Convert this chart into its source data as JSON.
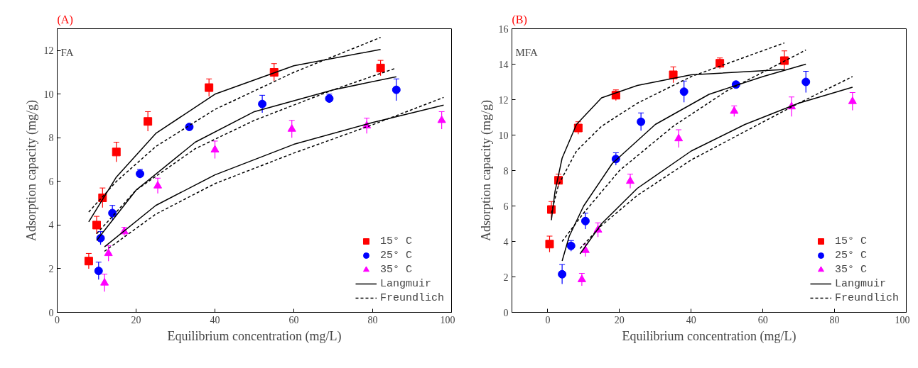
{
  "chart_data": [
    {
      "type": "scatter",
      "title": "(A)",
      "annotations": [
        "FA"
      ],
      "xlabel": "Equilibrium concentration (mg/L)",
      "ylabel": "Adsorption capacity (mg/g)",
      "xlim": [
        0,
        100
      ],
      "xticks": [
        0,
        20,
        40,
        60,
        80,
        100
      ],
      "ylim": [
        0,
        13
      ],
      "yticks": [
        0,
        2,
        4,
        6,
        8,
        10,
        12
      ],
      "grid": false,
      "legend": "bottom right",
      "series": [
        {
          "name": "15° C",
          "color": "#ff0000",
          "marker": "square",
          "x": [
            8,
            10,
            11.5,
            15,
            23,
            38.5,
            55,
            82
          ],
          "values": [
            2.35,
            4.0,
            5.25,
            7.35,
            8.75,
            10.3,
            11.0,
            11.2
          ],
          "errors": [
            0.35,
            0.4,
            0.45,
            0.45,
            0.45,
            0.4,
            0.4,
            0.35
          ]
        },
        {
          "name": "25° C",
          "color": "#0000ff",
          "marker": "circle",
          "x": [
            10.5,
            11,
            14,
            21,
            33.5,
            52,
            69,
            86
          ],
          "values": [
            1.9,
            3.4,
            4.55,
            6.35,
            8.5,
            9.55,
            9.8,
            10.2
          ],
          "errors": [
            0.4,
            0.3,
            0.35,
            0.2,
            0.1,
            0.4,
            0.2,
            0.5
          ]
        },
        {
          "name": "35° C",
          "color": "#ff00ff",
          "marker": "triangle",
          "x": [
            12,
            13,
            17,
            25.5,
            40,
            59.5,
            78.5,
            97.5
          ],
          "values": [
            1.35,
            2.7,
            3.7,
            5.8,
            7.45,
            8.4,
            8.55,
            8.8
          ],
          "errors": [
            0.4,
            0.35,
            0.2,
            0.35,
            0.4,
            0.4,
            0.35,
            0.4
          ]
        },
        {
          "name": "Langmuir",
          "type": "line",
          "color": "#000000",
          "line_style": "solid",
          "x": [
            8,
            15,
            25,
            40,
            60,
            82
          ],
          "values": [
            4.15,
            6.2,
            8.2,
            10.0,
            11.3,
            12.05
          ]
        },
        {
          "name": "Freundlich",
          "type": "line",
          "color": "#000000",
          "line_style": "dashed",
          "x": [
            8,
            15,
            25,
            40,
            60,
            82
          ],
          "values": [
            4.6,
            6.0,
            7.6,
            9.3,
            11.0,
            12.6
          ]
        },
        {
          "type": "line",
          "color": "#000000",
          "line_style": "solid",
          "x": [
            10,
            20,
            35,
            50,
            70,
            86
          ],
          "values": [
            3.3,
            5.6,
            7.8,
            9.2,
            10.2,
            10.8
          ]
        },
        {
          "type": "line",
          "color": "#000000",
          "line_style": "dashed",
          "x": [
            10,
            20,
            35,
            50,
            70,
            86
          ],
          "values": [
            3.6,
            5.6,
            7.5,
            8.8,
            10.2,
            11.2
          ]
        },
        {
          "type": "line",
          "color": "#000000",
          "line_style": "solid",
          "x": [
            12,
            25,
            40,
            60,
            80,
            98
          ],
          "values": [
            3.0,
            4.9,
            6.3,
            7.7,
            8.7,
            9.5
          ]
        },
        {
          "type": "line",
          "color": "#000000",
          "line_style": "dashed",
          "x": [
            12,
            25,
            40,
            60,
            80,
            98
          ],
          "values": [
            2.8,
            4.5,
            5.9,
            7.3,
            8.6,
            9.85
          ]
        }
      ]
    },
    {
      "type": "scatter",
      "title": "(B)",
      "annotations": [
        "MFA"
      ],
      "xlabel": "Equilibrium concentration (mg/L)",
      "ylabel": "Adsorption capacity (mg/g)",
      "xlim": [
        -10,
        100
      ],
      "xticks": [
        0,
        20,
        40,
        60,
        80,
        100
      ],
      "ylim": [
        0,
        16
      ],
      "yticks": [
        0,
        2,
        4,
        6,
        8,
        10,
        12,
        14,
        16
      ],
      "grid": false,
      "legend": "bottom right",
      "series": [
        {
          "name": "15° C",
          "color": "#ff0000",
          "marker": "square",
          "x": [
            0.5,
            1,
            3,
            8.5,
            19,
            35,
            48,
            66
          ],
          "values": [
            3.85,
            5.8,
            7.45,
            10.4,
            12.25,
            13.4,
            14.05,
            14.2
          ],
          "errors": [
            0.45,
            0.45,
            0.35,
            0.35,
            0.3,
            0.45,
            0.3,
            0.55
          ]
        },
        {
          "name": "25° C",
          "color": "#0000ff",
          "marker": "circle",
          "x": [
            4,
            6.5,
            10.5,
            19,
            26,
            38,
            52.5,
            72
          ],
          "values": [
            2.15,
            3.75,
            5.15,
            8.65,
            10.75,
            12.45,
            12.85,
            13.0
          ],
          "errors": [
            0.55,
            0.3,
            0.45,
            0.35,
            0.5,
            0.6,
            0.1,
            0.6
          ]
        },
        {
          "name": "35° C",
          "color": "#ff00ff",
          "marker": "triangle",
          "x": [
            9.5,
            10.5,
            14,
            23,
            36.5,
            52,
            68,
            85
          ],
          "values": [
            1.85,
            3.5,
            4.65,
            7.4,
            9.8,
            11.35,
            11.6,
            11.9
          ],
          "errors": [
            0.35,
            0.35,
            0.4,
            0.4,
            0.5,
            0.3,
            0.55,
            0.5
          ]
        },
        {
          "name": "Langmuir",
          "type": "line",
          "color": "#000000",
          "line_style": "solid",
          "x": [
            1,
            2,
            4,
            8,
            15,
            25,
            40,
            66
          ],
          "values": [
            5.2,
            6.8,
            8.7,
            10.6,
            12.1,
            12.8,
            13.4,
            13.7
          ]
        },
        {
          "name": "Freundlich",
          "type": "line",
          "color": "#000000",
          "line_style": "dashed",
          "x": [
            1,
            3,
            8,
            15,
            25,
            40,
            66
          ],
          "values": [
            5.6,
            7.2,
            9.1,
            10.5,
            11.8,
            13.3,
            15.2
          ]
        },
        {
          "type": "line",
          "color": "#000000",
          "line_style": "solid",
          "x": [
            4,
            6,
            10,
            18,
            30,
            45,
            60,
            72
          ],
          "values": [
            2.9,
            4.3,
            6.0,
            8.4,
            10.6,
            12.3,
            13.3,
            14.0
          ]
        },
        {
          "type": "line",
          "color": "#000000",
          "line_style": "dashed",
          "x": [
            4,
            10,
            20,
            35,
            50,
            72
          ],
          "values": [
            4.0,
            5.6,
            8.0,
            10.5,
            12.5,
            14.8
          ]
        },
        {
          "type": "line",
          "color": "#000000",
          "line_style": "solid",
          "x": [
            9,
            15,
            25,
            40,
            55,
            70,
            85
          ],
          "values": [
            3.3,
            5.0,
            7.0,
            9.1,
            10.6,
            11.8,
            12.7
          ]
        },
        {
          "type": "line",
          "color": "#000000",
          "line_style": "dashed",
          "x": [
            9,
            15,
            25,
            40,
            55,
            70,
            85
          ],
          "values": [
            3.6,
            4.9,
            6.6,
            8.6,
            10.2,
            11.8,
            13.3
          ]
        }
      ]
    }
  ]
}
